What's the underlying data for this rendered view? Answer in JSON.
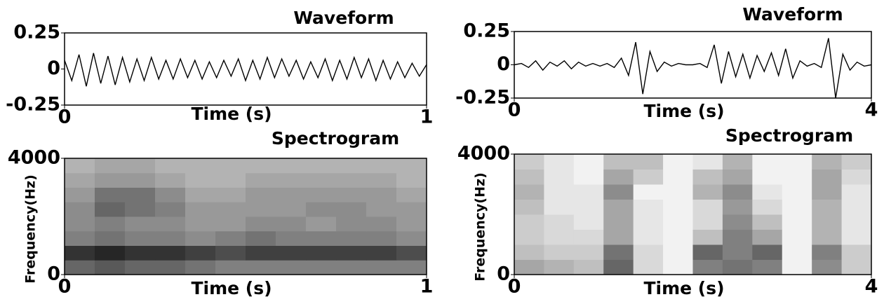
{
  "chart_data": [
    {
      "type": "line",
      "title": "Waveform",
      "xlabel": "Time (s)",
      "color": "#000000",
      "xlim": [
        0,
        1
      ],
      "xticks": [
        0,
        1
      ],
      "ylim": [
        -0.25,
        0.25
      ],
      "yticks": [
        0.25,
        0,
        -0.25
      ],
      "x": [
        0,
        0.02,
        0.04,
        0.06,
        0.08,
        0.1,
        0.12,
        0.14,
        0.16,
        0.18,
        0.2,
        0.22,
        0.24,
        0.26,
        0.28,
        0.3,
        0.32,
        0.34,
        0.36,
        0.38,
        0.4,
        0.42,
        0.44,
        0.46,
        0.48,
        0.5,
        0.52,
        0.54,
        0.56,
        0.58,
        0.6,
        0.62,
        0.64,
        0.66,
        0.68,
        0.7,
        0.72,
        0.74,
        0.76,
        0.78,
        0.8,
        0.82,
        0.84,
        0.86,
        0.88,
        0.9,
        0.92,
        0.94,
        0.96,
        0.98,
        1
      ],
      "values": [
        0.06,
        -0.08,
        0.1,
        -0.12,
        0.11,
        -0.1,
        0.09,
        -0.11,
        0.08,
        -0.09,
        0.07,
        -0.08,
        0.08,
        -0.07,
        0.06,
        -0.07,
        0.07,
        -0.06,
        0.06,
        -0.07,
        0.05,
        -0.06,
        0.06,
        -0.05,
        0.07,
        -0.08,
        0.06,
        -0.07,
        0.08,
        -0.06,
        0.07,
        -0.05,
        0.06,
        -0.07,
        0.05,
        -0.06,
        0.07,
        -0.08,
        0.06,
        -0.07,
        0.08,
        -0.06,
        0.07,
        -0.08,
        0.06,
        -0.07,
        0.05,
        -0.06,
        0.04,
        -0.05,
        0.03
      ]
    },
    {
      "type": "line",
      "title": "Waveform",
      "xlabel": "Time (s)",
      "color": "#000000",
      "xlim": [
        0,
        4
      ],
      "xticks": [
        0,
        4
      ],
      "ylim": [
        -0.25,
        0.25
      ],
      "yticks": [
        0.25,
        0,
        -0.25
      ],
      "x": [
        0,
        0.08,
        0.16,
        0.24,
        0.32,
        0.4,
        0.48,
        0.56,
        0.64,
        0.72,
        0.8,
        0.88,
        0.96,
        1.04,
        1.12,
        1.2,
        1.28,
        1.36,
        1.44,
        1.52,
        1.6,
        1.68,
        1.76,
        1.84,
        1.92,
        2,
        2.08,
        2.16,
        2.24,
        2.32,
        2.4,
        2.48,
        2.56,
        2.64,
        2.72,
        2.8,
        2.88,
        2.96,
        3.04,
        3.12,
        3.2,
        3.28,
        3.36,
        3.44,
        3.52,
        3.6,
        3.68,
        3.76,
        3.84,
        3.92,
        4
      ],
      "values": [
        0,
        0.01,
        -0.02,
        0.03,
        -0.04,
        0.02,
        -0.01,
        0.03,
        -0.03,
        0.02,
        -0.01,
        0.01,
        -0.01,
        0.01,
        -0.02,
        0.05,
        -0.08,
        0.17,
        -0.22,
        0.1,
        -0.05,
        0.02,
        -0.01,
        0.01,
        0,
        0,
        0.01,
        -0.02,
        0.15,
        -0.14,
        0.1,
        -0.09,
        0.08,
        -0.1,
        0.07,
        -0.05,
        0.09,
        -0.08,
        0.12,
        -0.1,
        0.03,
        -0.01,
        0.01,
        -0.02,
        0.2,
        -0.25,
        0.08,
        -0.04,
        0.02,
        -0.01,
        0
      ]
    },
    {
      "type": "heatmap",
      "title": "Spectrogram",
      "xlabel": "Time (s)",
      "ylabel": "Frequency(Hz)",
      "xlim": [
        0,
        1
      ],
      "xticks": [
        0,
        1
      ],
      "ylim": [
        0,
        4000
      ],
      "yticks": [
        0,
        4000
      ],
      "z": [
        [
          0.6,
          0.65,
          0.6,
          0.6,
          0.55,
          0.5,
          0.5,
          0.5,
          0.5,
          0.5,
          0.5,
          0.5
        ],
        [
          0.8,
          0.85,
          0.8,
          0.8,
          0.75,
          0.7,
          0.75,
          0.75,
          0.75,
          0.75,
          0.75,
          0.7
        ],
        [
          0.5,
          0.55,
          0.5,
          0.5,
          0.45,
          0.5,
          0.55,
          0.5,
          0.5,
          0.5,
          0.5,
          0.45
        ],
        [
          0.45,
          0.5,
          0.45,
          0.45,
          0.4,
          0.4,
          0.45,
          0.45,
          0.4,
          0.45,
          0.45,
          0.4
        ],
        [
          0.45,
          0.6,
          0.55,
          0.5,
          0.4,
          0.4,
          0.4,
          0.4,
          0.45,
          0.45,
          0.4,
          0.4
        ],
        [
          0.4,
          0.55,
          0.55,
          0.45,
          0.35,
          0.35,
          0.4,
          0.4,
          0.4,
          0.4,
          0.4,
          0.35
        ],
        [
          0.35,
          0.4,
          0.4,
          0.35,
          0.3,
          0.3,
          0.35,
          0.35,
          0.35,
          0.35,
          0.35,
          0.3
        ],
        [
          0.3,
          0.35,
          0.35,
          0.3,
          0.3,
          0.3,
          0.3,
          0.3,
          0.3,
          0.3,
          0.3,
          0.3
        ]
      ]
    },
    {
      "type": "heatmap",
      "title": "Spectrogram",
      "xlabel": "Time (s)",
      "ylabel": "Frequency(Hz)",
      "xlim": [
        0,
        4
      ],
      "xticks": [
        0,
        4
      ],
      "ylim": [
        0,
        4000
      ],
      "yticks": [
        0,
        4000
      ],
      "z": [
        [
          0.35,
          0.3,
          0.25,
          0.6,
          0.15,
          0.05,
          0.5,
          0.55,
          0.5,
          0.05,
          0.45,
          0.2
        ],
        [
          0.25,
          0.2,
          0.2,
          0.55,
          0.15,
          0.05,
          0.6,
          0.5,
          0.6,
          0.05,
          0.5,
          0.2
        ],
        [
          0.2,
          0.15,
          0.15,
          0.35,
          0.1,
          0.05,
          0.25,
          0.5,
          0.35,
          0.05,
          0.3,
          0.1
        ],
        [
          0.2,
          0.15,
          0.1,
          0.35,
          0.1,
          0.05,
          0.15,
          0.45,
          0.25,
          0.05,
          0.3,
          0.1
        ],
        [
          0.25,
          0.1,
          0.1,
          0.35,
          0.1,
          0.05,
          0.15,
          0.4,
          0.15,
          0.05,
          0.3,
          0.1
        ],
        [
          0.3,
          0.1,
          0.1,
          0.45,
          0.05,
          0.05,
          0.3,
          0.45,
          0.1,
          0.05,
          0.35,
          0.1
        ],
        [
          0.25,
          0.1,
          0.05,
          0.35,
          0.2,
          0.05,
          0.25,
          0.35,
          0.05,
          0.05,
          0.35,
          0.15
        ],
        [
          0.2,
          0.1,
          0.05,
          0.25,
          0.25,
          0.05,
          0.1,
          0.3,
          0.05,
          0.05,
          0.3,
          0.2
        ]
      ]
    }
  ]
}
